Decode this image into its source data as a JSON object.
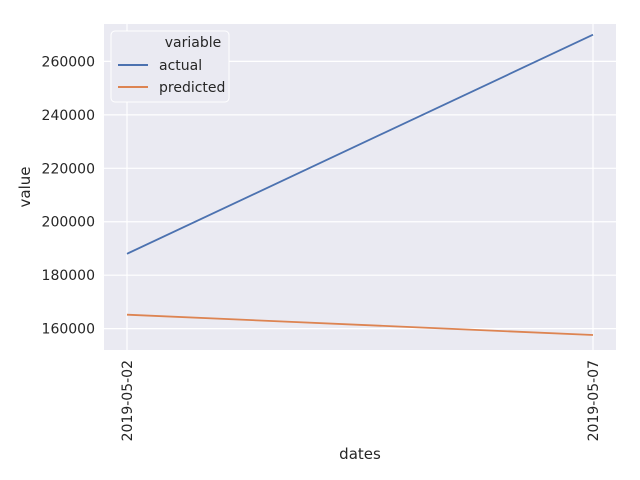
{
  "chart_data": {
    "type": "line",
    "xlabel": "dates",
    "ylabel": "value",
    "x": [
      "2019-05-02",
      "2019-05-07"
    ],
    "series": [
      {
        "name": "actual",
        "values": [
          188000,
          270000
        ],
        "color": "#4c72b0"
      },
      {
        "name": "predicted",
        "values": [
          165200,
          157600
        ],
        "color": "#dd8452"
      }
    ],
    "yticks": [
      "160000",
      "180000",
      "200000",
      "220000",
      "240000",
      "260000"
    ],
    "ylim": [
      152000,
      274000
    ],
    "legend": {
      "title": "variable",
      "placement": "top-left"
    },
    "grid": true,
    "background": "#eaeaf2"
  }
}
